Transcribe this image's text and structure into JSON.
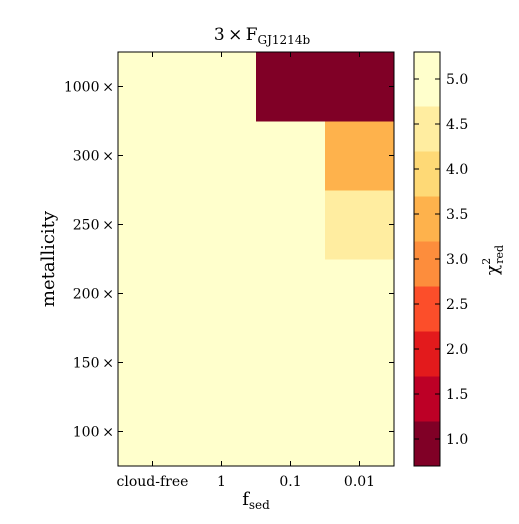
{
  "chart_data": {
    "type": "heatmap",
    "title": {
      "main": "3 × F",
      "sub": "GJ1214b"
    },
    "xlabel": {
      "main": "f",
      "sub": "sed"
    },
    "ylabel": "metallicity",
    "colorbar_label": {
      "main": "χ",
      "sup": "2",
      "sub": "red"
    },
    "x_categories": [
      "cloud-free",
      "1",
      "0.1",
      "0.01"
    ],
    "y_categories": [
      "100 ×",
      "150 ×",
      "200 ×",
      "250 ×",
      "300 ×",
      "1000 ×"
    ],
    "values": [
      [
        5.3,
        5.3,
        5.3,
        5.3
      ],
      [
        5.3,
        5.3,
        5.3,
        5.3
      ],
      [
        5.3,
        5.3,
        5.3,
        5.3
      ],
      [
        5.3,
        5.3,
        5.3,
        4.3
      ],
      [
        5.3,
        5.3,
        5.3,
        3.3
      ],
      [
        5.3,
        5.3,
        0.8,
        0.8
      ]
    ],
    "colorbar": {
      "range": [
        0.7,
        5.3
      ],
      "ticks": [
        "1.0",
        "1.5",
        "2.0",
        "2.5",
        "3.0",
        "3.5",
        "4.0",
        "4.5",
        "5.0"
      ],
      "bands": [
        {
          "from": 0.7,
          "to": 1.2,
          "color": "#800026"
        },
        {
          "from": 1.2,
          "to": 1.7,
          "color": "#bd0026"
        },
        {
          "from": 1.7,
          "to": 2.2,
          "color": "#e31a1c"
        },
        {
          "from": 2.2,
          "to": 2.7,
          "color": "#fc4e2a"
        },
        {
          "from": 2.7,
          "to": 3.2,
          "color": "#fd8d3c"
        },
        {
          "from": 3.2,
          "to": 3.7,
          "color": "#feb24c"
        },
        {
          "from": 3.7,
          "to": 4.2,
          "color": "#fed976"
        },
        {
          "from": 4.2,
          "to": 4.7,
          "color": "#ffeda0"
        },
        {
          "from": 4.7,
          "to": 5.3,
          "color": "#ffffcc"
        }
      ]
    }
  }
}
